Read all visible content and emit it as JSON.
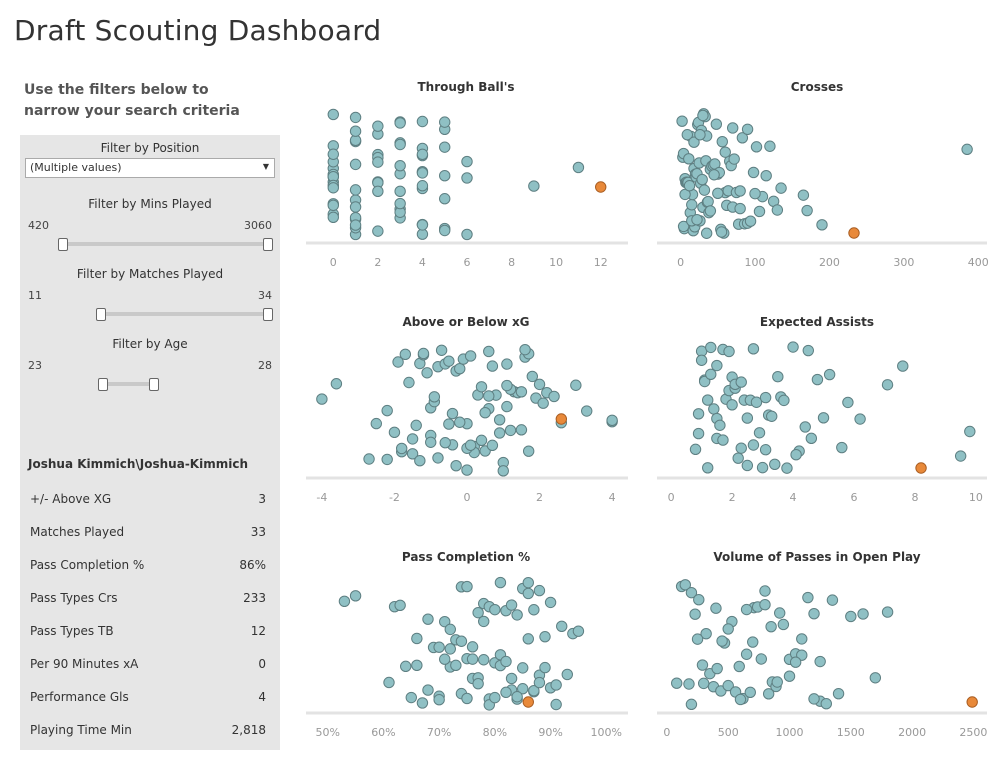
{
  "page": {
    "title": "Draft Scouting Dashboard",
    "intro": "Use the filters below to narrow your search criteria"
  },
  "filters": {
    "position": {
      "title": "Filter by Position",
      "value": "(Multiple values)"
    },
    "mins_played": {
      "title": "Filter by Mins Played",
      "min": "420",
      "max": "3060",
      "range_fraction": [
        0,
        1
      ]
    },
    "matches_played": {
      "title": "Filter by Matches Played",
      "min": "11",
      "max": "34",
      "range_fraction": [
        0,
        1
      ]
    },
    "age": {
      "title": "Filter by Age",
      "min": "23",
      "max": "28",
      "range_fraction": [
        0,
        1
      ]
    }
  },
  "player": {
    "name": "Joshua Kimmich\\Joshua-Kimmich",
    "stats": [
      {
        "label": "+/- Above XG",
        "value": "3"
      },
      {
        "label": "Matches Played",
        "value": "33"
      },
      {
        "label": "Pass Completion %",
        "value": "86%"
      },
      {
        "label": "Pass Types Crs",
        "value": "233"
      },
      {
        "label": "Pass Types TB",
        "value": "12"
      },
      {
        "label": "Per 90 Minutes xA",
        "value": "0"
      },
      {
        "label": "Performance Gls",
        "value": "4"
      },
      {
        "label": "Playing Time Min",
        "value": "2,818"
      }
    ]
  },
  "colors": {
    "others": "#8fc0c4",
    "others_stroke": "#5e7f82",
    "highlight": "#e8893a",
    "highlight_stroke": "#a85d22",
    "axis": "#e3e3e3"
  },
  "chart_data": [
    {
      "type": "scatter",
      "title": "Through Ball's",
      "xlim": [
        -1,
        13
      ],
      "ticks": [
        0,
        2,
        4,
        6,
        8,
        10,
        12
      ],
      "tick_labels": [
        "0",
        "2",
        "4",
        "6",
        "8",
        "10",
        "12"
      ],
      "x": [
        0,
        0,
        0,
        0,
        0,
        0,
        0,
        0,
        0,
        0,
        0,
        0,
        0,
        0,
        0,
        1,
        1,
        1,
        1,
        1,
        1,
        1,
        1,
        1,
        1,
        1,
        1,
        1,
        2,
        2,
        2,
        2,
        2,
        2,
        2,
        2,
        2,
        3,
        3,
        3,
        3,
        3,
        3,
        3,
        3,
        3,
        3,
        3,
        4,
        4,
        4,
        4,
        4,
        4,
        4,
        4,
        4,
        4,
        4,
        5,
        5,
        5,
        5,
        5,
        5,
        5,
        6,
        6,
        6,
        9,
        11
      ],
      "highlight": {
        "x": 12
      }
    },
    {
      "type": "scatter",
      "title": "Crosses",
      "xlim": [
        -25,
        405
      ],
      "ticks": [
        0,
        100,
        200,
        300,
        400
      ],
      "tick_labels": [
        "0",
        "100",
        "200",
        "300",
        "400"
      ],
      "x": [
        2,
        3,
        4,
        5,
        6,
        7,
        8,
        9,
        10,
        11,
        12,
        13,
        14,
        15,
        16,
        17,
        18,
        19,
        20,
        21,
        22,
        23,
        24,
        25,
        26,
        27,
        28,
        29,
        30,
        31,
        32,
        33,
        34,
        35,
        36,
        37,
        38,
        40,
        42,
        44,
        46,
        48,
        50,
        52,
        54,
        56,
        58,
        60,
        62,
        64,
        66,
        68,
        70,
        72,
        75,
        78,
        80,
        83,
        86,
        90,
        94,
        98,
        102,
        106,
        110,
        115,
        120,
        125,
        130,
        135,
        165,
        170,
        190,
        385,
        4,
        6,
        9,
        12,
        15,
        18,
        22,
        26,
        30,
        35,
        40,
        45,
        50,
        55,
        60,
        70,
        80,
        90,
        100
      ],
      "highlight": {
        "x": 233
      }
    },
    {
      "type": "scatter",
      "title": "Above or Below xG",
      "xlim": [
        -4.3,
        4.3
      ],
      "ticks": [
        -4,
        -2,
        0,
        2,
        4
      ],
      "tick_labels": [
        "-4",
        "-2",
        "0",
        "2",
        "4"
      ],
      "x": [
        -4,
        -3.6,
        -2.7,
        -2.5,
        -2.2,
        -2,
        -1.9,
        -1.8,
        -1.7,
        -1.6,
        -1.5,
        -1.4,
        -1.3,
        -1.2,
        -1.1,
        -1,
        -0.9,
        -0.8,
        -0.7,
        -0.6,
        -0.5,
        -0.4,
        -0.3,
        -0.2,
        -0.1,
        0,
        0.1,
        0.2,
        0.3,
        0.4,
        0.5,
        0.6,
        0.7,
        0.8,
        0.9,
        1,
        1.1,
        1.2,
        1.3,
        1.4,
        1.5,
        1.6,
        1.7,
        1.8,
        1.9,
        2,
        2.2,
        2.4,
        2.6,
        3,
        3.3,
        4,
        4,
        -1.5,
        -1,
        -0.5,
        0,
        0.5,
        1,
        1.5,
        -1.2,
        -0.8,
        -0.3,
        0.2,
        0.7,
        1.2,
        1.7,
        -0.6,
        0,
        0.6,
        1.1,
        -2.2,
        -1.8,
        -1.3,
        -0.9,
        -0.4,
        0.1,
        0.6,
        1.1,
        1.6,
        2.1,
        -1,
        -0.2,
        0.4,
        0.9
      ],
      "highlight": {
        "x": 2.6
      }
    },
    {
      "type": "scatter",
      "title": "Expected Assists",
      "xlim": [
        -0.3,
        10.2
      ],
      "ticks": [
        0,
        2,
        4,
        6,
        8,
        10
      ],
      "tick_labels": [
        "0",
        "2",
        "4",
        "6",
        "8",
        "10"
      ],
      "x": [
        0.8,
        0.9,
        1,
        1,
        1.1,
        1.2,
        1.2,
        1.3,
        1.4,
        1.5,
        1.5,
        1.6,
        1.7,
        1.8,
        1.9,
        2,
        2,
        2.1,
        2.2,
        2.3,
        2.4,
        2.5,
        2.6,
        2.7,
        2.8,
        3,
        3.1,
        3.2,
        3.3,
        3.5,
        3.6,
        3.8,
        4,
        4.2,
        4.4,
        4.6,
        4.8,
        5,
        5.2,
        5.6,
        5.8,
        6.2,
        7.1,
        7.6,
        9.5,
        9.8,
        0.9,
        1.1,
        1.3,
        1.5,
        1.7,
        1.9,
        2.1,
        2.3,
        2.5,
        2.7,
        2.9,
        3.1,
        3.4,
        3.7,
        4.1,
        4.5
      ],
      "highlight": {
        "x": 8.2
      }
    },
    {
      "type": "scatter",
      "title": "Pass Completion %",
      "xlim": [
        47,
        103
      ],
      "ticks": [
        50,
        60,
        70,
        80,
        90,
        100
      ],
      "tick_labels": [
        "50%",
        "60%",
        "70%",
        "80%",
        "90%",
        "100%"
      ],
      "x": [
        53,
        55,
        61,
        62,
        63,
        64,
        65,
        66,
        67,
        68,
        69,
        70,
        70,
        71,
        72,
        72,
        73,
        74,
        74,
        75,
        75,
        76,
        76,
        77,
        77,
        78,
        78,
        79,
        79,
        80,
        80,
        81,
        81,
        82,
        82,
        83,
        83,
        84,
        84,
        85,
        85,
        86,
        86,
        87,
        87,
        88,
        88,
        89,
        90,
        91,
        92,
        93,
        94,
        95,
        66,
        68,
        71,
        73,
        75,
        77,
        79,
        81,
        83,
        85,
        87,
        89,
        91,
        70,
        74,
        78,
        82,
        86,
        90,
        72,
        76,
        80,
        84,
        88
      ],
      "highlight": {
        "x": 86
      }
    },
    {
      "type": "scatter",
      "title": "Volume of Passes in Open Play",
      "xlim": [
        -40,
        2570
      ],
      "ticks": [
        0,
        500,
        1000,
        1500,
        2000,
        2500
      ],
      "tick_labels": [
        "0",
        "500",
        "1000",
        "1500",
        "2000",
        "2500"
      ],
      "x": [
        80,
        120,
        150,
        180,
        200,
        230,
        260,
        290,
        320,
        350,
        380,
        410,
        440,
        470,
        500,
        530,
        560,
        590,
        620,
        650,
        680,
        710,
        740,
        770,
        800,
        830,
        860,
        890,
        920,
        950,
        1000,
        1050,
        1100,
        1150,
        1200,
        1250,
        1300,
        1350,
        1400,
        1500,
        1600,
        1700,
        1800,
        200,
        300,
        400,
        500,
        600,
        700,
        800,
        900,
        1000,
        1100,
        1200,
        250,
        450,
        650,
        850,
        1050,
        1250
      ],
      "highlight": {
        "x": 2490
      }
    }
  ]
}
